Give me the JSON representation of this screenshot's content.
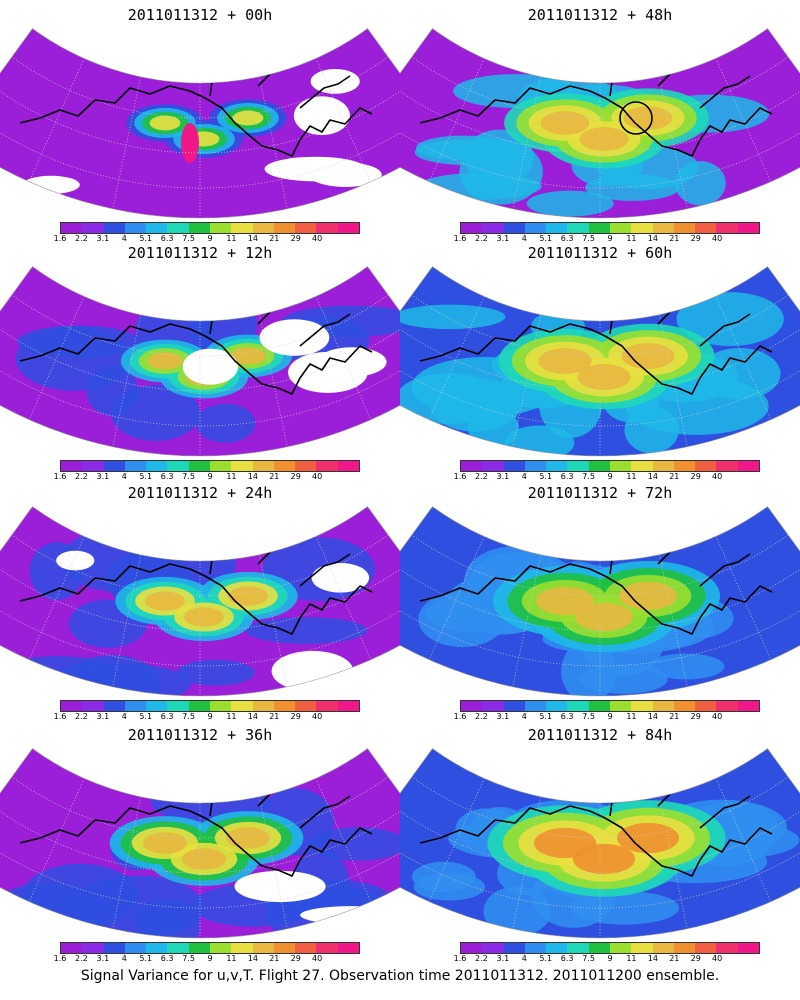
{
  "panels": [
    {
      "title": "2011011312 + 00h",
      "stage": 0
    },
    {
      "title": "2011011312 + 48h",
      "stage": 4
    },
    {
      "title": "2011011312 + 12h",
      "stage": 1
    },
    {
      "title": "2011011312 + 60h",
      "stage": 5
    },
    {
      "title": "2011011312 + 24h",
      "stage": 2
    },
    {
      "title": "2011011312 + 72h",
      "stage": 6
    },
    {
      "title": "2011011312 + 36h",
      "stage": 3
    },
    {
      "title": "2011011312 + 84h",
      "stage": 7
    }
  ],
  "colorbar": {
    "labels": [
      "1.6",
      "2.2",
      "3.1",
      "4",
      "5.1",
      "6.3",
      "7.5",
      "9",
      "11",
      "14",
      "21",
      "29",
      "40"
    ],
    "colors": [
      "#9b1fd9",
      "#8a2be8",
      "#2f4fe0",
      "#2f8ff0",
      "#1fb8e8",
      "#1fd8b8",
      "#20c040",
      "#9adf30",
      "#e8e040",
      "#e8b840",
      "#f09030",
      "#f06040",
      "#f0306a",
      "#f01888"
    ]
  },
  "caption": "Signal Variance for u,v,T. Flight 27. Observation time 2011011312. 2011011200 ensemble.",
  "fills": {
    "stage_bands": [
      [
        "#9b1fd9",
        "#9b1fd9",
        "#2f4fe0",
        "#1fb8e8",
        "#20c040",
        "#e8e040"
      ],
      [
        "#9b1fd9",
        "#2f4fe0",
        "#1fb8e8",
        "#1fd8b8",
        "#9adf30",
        "#e8b840"
      ],
      [
        "#9b1fd9",
        "#2f4fe0",
        "#1fb8e8",
        "#1fd8b8",
        "#e8e040",
        "#e8b840"
      ],
      [
        "#9b1fd9",
        "#2f4fe0",
        "#1fb8e8",
        "#20c040",
        "#e8e040",
        "#e8b840"
      ],
      [
        "#9b1fd9",
        "#1fb8e8",
        "#1fd8b8",
        "#9adf30",
        "#e8e040",
        "#e8b840"
      ],
      [
        "#2f4fe0",
        "#1fb8e8",
        "#1fd8b8",
        "#9adf30",
        "#e8e040",
        "#e8b840"
      ],
      [
        "#2f4fe0",
        "#2f8ff0",
        "#1fb8e8",
        "#20c040",
        "#9adf30",
        "#e8b840"
      ],
      [
        "#2f4fe0",
        "#2f8ff0",
        "#1fd8b8",
        "#9adf30",
        "#e8e040",
        "#f09030"
      ]
    ],
    "peak_00h": "#f01888",
    "ring_48h": "#000000"
  }
}
